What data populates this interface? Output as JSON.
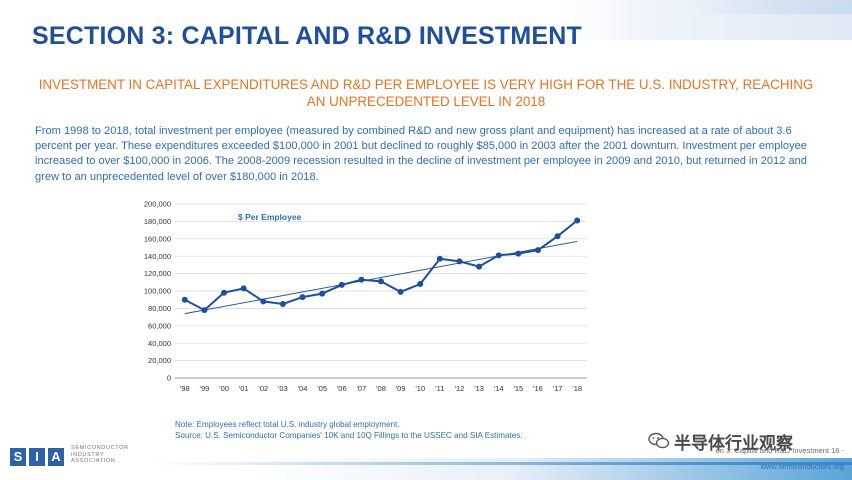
{
  "slide": {
    "section_title": "SECTION 3: CAPITAL AND R&D INVESTMENT",
    "headline": "INVESTMENT IN CAPITAL EXPENDITURES AND R&D PER EMPLOYEE IS VERY HIGH FOR THE U.S. INDUSTRY, REACHING AN UNPRECEDENTED LEVEL IN 2018",
    "body": "From 1998 to 2018, total investment per employee (measured by combined R&D and new gross plant and equipment) has increased at a rate of about 3.6 percent per year.  These expenditures exceeded $100,000 in 2001 but declined to roughly $85,000 in 2003 after the 2001 downturn.  Investment per employee increased to over $100,000 in 2006.  The 2008-2009 recession resulted in the decline of investment per employee in 2009 and 2010, but returned in 2012 and grew to an unprecedented level of over $180,000 in 2018.",
    "note_line1": "Note: Employees reflect total U.S. industry global employment.",
    "note_line2": "Source: U.S. Semiconductor Companies' 10K and 10Q Fillings to the USSEC and SIA Estimates."
  },
  "footer": {
    "logo_letters": [
      "S",
      "I",
      "A"
    ],
    "org_lines": [
      "SEMICONDUCTOR",
      "INDUSTRY",
      "ASSOCIATION"
    ],
    "watermark": "半导体行业观察",
    "page_text": "on 3: Capital and R&D Investment 16 -",
    "url": "www.semiconductors.org"
  },
  "colors": {
    "title_blue": "#1f4e9c",
    "accent_orange": "#e8731f",
    "text_blue": "#2f6eb5",
    "series_blue": "#1f4e9c",
    "grid": "#d9d9d9",
    "logo_blue": "#2d62a8"
  },
  "icons": {
    "watermark": "wechat-icon"
  },
  "chart_data": {
    "type": "line",
    "title": "",
    "xlabel": "",
    "ylabel": "",
    "categories": [
      "'98",
      "'99",
      "'00",
      "'01",
      "'02",
      "'03",
      "'04",
      "'05",
      "'06",
      "'07",
      "'08",
      "'09",
      "'10",
      "'11",
      "'12",
      "'13",
      "'14",
      "'15",
      "'16",
      "'17",
      "'18"
    ],
    "series": [
      {
        "name": "$ Per Employee",
        "values": [
          90000,
          78000,
          98000,
          103000,
          88000,
          85000,
          93000,
          97000,
          107000,
          113000,
          111000,
          99000,
          108000,
          137000,
          134000,
          128000,
          141000,
          143000,
          147000,
          163000,
          181000
        ]
      }
    ],
    "trendline": {
      "start": 74000,
      "end": 157000
    },
    "ylim": [
      0,
      200000
    ],
    "ytick_step": 20000,
    "ytick_labels": [
      "0",
      "20,000",
      "40,000",
      "60,000",
      "80,000",
      "100,000",
      "120,000",
      "140,000",
      "160,000",
      "180,000",
      "200,000"
    ],
    "grid": true,
    "legend": "none"
  }
}
